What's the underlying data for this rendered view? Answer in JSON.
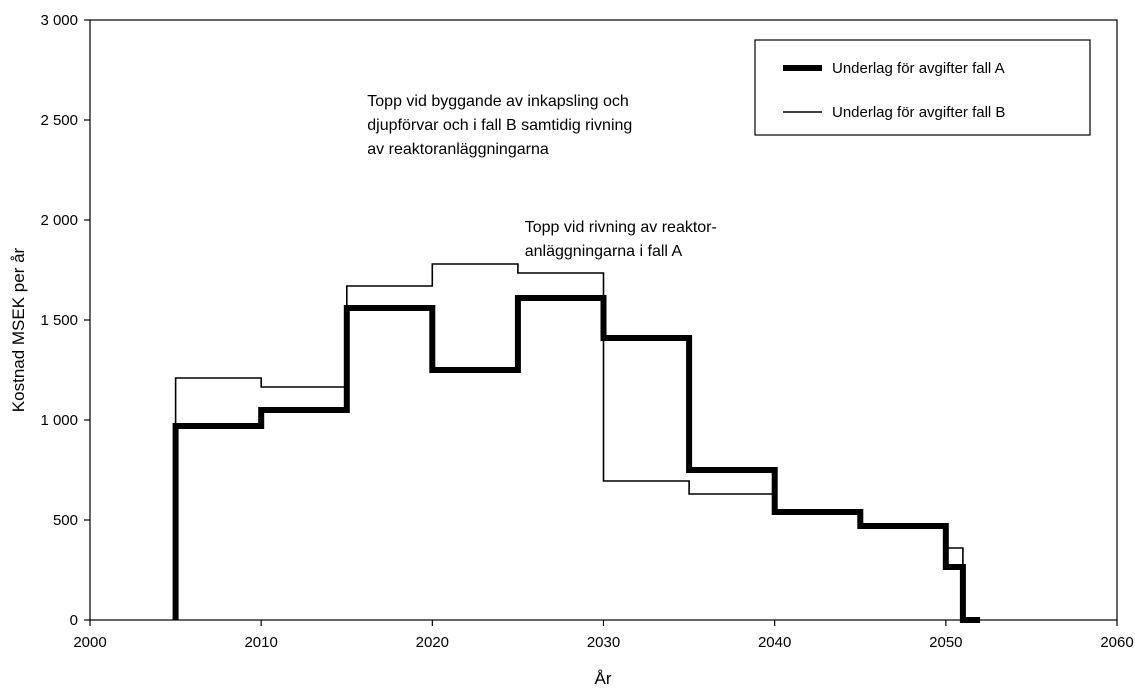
{
  "chart_data": {
    "type": "line",
    "step": true,
    "xlabel": "År",
    "ylabel": "Kostnad MSEK per år",
    "xlim": [
      2000,
      2060
    ],
    "ylim": [
      0,
      3000
    ],
    "xticks": [
      2000,
      2010,
      2020,
      2030,
      2040,
      2050,
      2060
    ],
    "yticks": [
      0,
      500,
      1000,
      1500,
      2000,
      2500,
      3000
    ],
    "xtick_labels": [
      "2000",
      "2010",
      "2020",
      "2030",
      "2040",
      "2050",
      "2060"
    ],
    "ytick_labels": [
      "0",
      "500",
      "1 000",
      "1 500",
      "2 000",
      "2 500",
      "3 000"
    ],
    "grid": false,
    "legend_position": "top-right",
    "series": [
      {
        "name": "Underlag för avgifter fall A",
        "style": "thick",
        "points": [
          [
            2005,
            0
          ],
          [
            2005,
            970
          ],
          [
            2010,
            970
          ],
          [
            2010,
            1050
          ],
          [
            2015,
            1050
          ],
          [
            2015,
            1560
          ],
          [
            2020,
            1560
          ],
          [
            2020,
            1250
          ],
          [
            2025,
            1250
          ],
          [
            2025,
            1610
          ],
          [
            2030,
            1610
          ],
          [
            2030,
            1410
          ],
          [
            2035,
            1410
          ],
          [
            2035,
            750
          ],
          [
            2040,
            750
          ],
          [
            2040,
            540
          ],
          [
            2045,
            540
          ],
          [
            2045,
            470
          ],
          [
            2050,
            470
          ],
          [
            2050,
            265
          ],
          [
            2051,
            265
          ],
          [
            2051,
            0
          ],
          [
            2052,
            0
          ]
        ]
      },
      {
        "name": "Underlag för avgifter fall B",
        "style": "thin",
        "points": [
          [
            2005,
            0
          ],
          [
            2005,
            1210
          ],
          [
            2010,
            1210
          ],
          [
            2010,
            1165
          ],
          [
            2015,
            1165
          ],
          [
            2015,
            1670
          ],
          [
            2020,
            1670
          ],
          [
            2020,
            1780
          ],
          [
            2025,
            1780
          ],
          [
            2025,
            1735
          ],
          [
            2030,
            1735
          ],
          [
            2030,
            695
          ],
          [
            2035,
            695
          ],
          [
            2035,
            630
          ],
          [
            2040,
            630
          ],
          [
            2040,
            540
          ],
          [
            2045,
            540
          ],
          [
            2045,
            470
          ],
          [
            2050,
            470
          ],
          [
            2050,
            360
          ],
          [
            2051,
            360
          ],
          [
            2051,
            0
          ],
          [
            2052,
            0
          ]
        ]
      }
    ],
    "annotations": [
      {
        "lines": [
          "Topp vid byggande av inkapsling och",
          "djupförvar och i fall B samtidig rivning",
          "av reaktoranläggningarna"
        ],
        "x": 2016.2,
        "y": 2570
      },
      {
        "lines": [
          "Topp vid rivning av reaktor-",
          "anläggningarna i fall A"
        ],
        "x": 2025.4,
        "y": 1940
      }
    ]
  }
}
